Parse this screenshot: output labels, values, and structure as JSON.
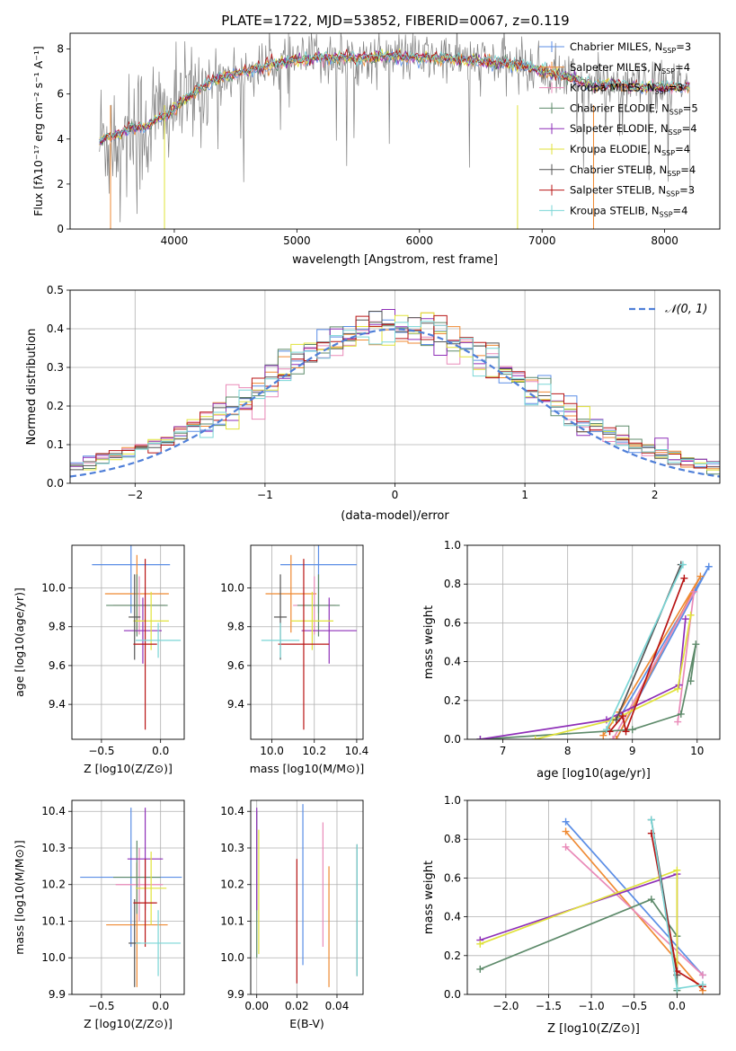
{
  "title": "PLATE=1722, MJD=53852, FIBERID=0067, z=0.119",
  "colors": {
    "Chabrier MILES": "#5b8ee6",
    "Salpeter MILES": "#ef8a33",
    "Kroupa MILES": "#e98ab8",
    "Chabrier ELODIE": "#5d8a6a",
    "Salpeter ELODIE": "#8e2fb8",
    "Kroupa ELODIE": "#e0e23a",
    "Chabrier STELIB": "#555555",
    "Salpeter STELIB": "#b81414",
    "Kroupa STELIB": "#7ad6d6"
  },
  "chart_data": [
    {
      "id": "spectrum",
      "type": "line",
      "xlabel": "wavelength [Angstrom, rest frame]",
      "ylabel": "Flux [f_λ 10^-17 erg cm^-2 s^-1 A^-1]",
      "xlim": [
        3150,
        8450
      ],
      "ylim": [
        0,
        8.7
      ],
      "xticks": [
        4000,
        5000,
        6000,
        7000,
        8000
      ],
      "yticks": [
        0,
        2,
        4,
        6,
        8
      ],
      "grid": false,
      "legend_position": "right",
      "legend": [
        {
          "label": "Chabrier MILES, N",
          "sub": "SSP",
          "tail": "=3",
          "model": "Chabrier MILES"
        },
        {
          "label": "Salpeter MILES, N",
          "sub": "SSP",
          "tail": "=4",
          "model": "Salpeter MILES"
        },
        {
          "label": "Kroupa MILES, N",
          "sub": "SSP",
          "tail": "=3",
          "model": "Kroupa MILES"
        },
        {
          "label": "Chabrier ELODIE, N",
          "sub": "SSP",
          "tail": "=5",
          "model": "Chabrier ELODIE"
        },
        {
          "label": "Salpeter ELODIE, N",
          "sub": "SSP",
          "tail": "=4",
          "model": "Salpeter ELODIE"
        },
        {
          "label": "Kroupa ELODIE, N",
          "sub": "SSP",
          "tail": "=4",
          "model": "Kroupa ELODIE"
        },
        {
          "label": "Chabrier STELIB, N",
          "sub": "SSP",
          "tail": "=4",
          "model": "Chabrier STELIB"
        },
        {
          "label": "Salpeter STELIB, N",
          "sub": "SSP",
          "tail": "=3",
          "model": "Salpeter STELIB"
        },
        {
          "label": "Kroupa STELIB, N",
          "sub": "SSP",
          "tail": "=4",
          "model": "Kroupa STELIB"
        }
      ],
      "model_curve": {
        "x": [
          3380,
          3450,
          3550,
          3650,
          3750,
          3850,
          3950,
          4050,
          4150,
          4250,
          4400,
          4600,
          4800,
          5000,
          5200,
          5400,
          5600,
          5800,
          6000,
          6200,
          6400,
          6600,
          6800,
          7000,
          7200,
          7400,
          7600,
          7800,
          8000,
          8200
        ],
        "y": [
          3.9,
          4.1,
          4.2,
          4.5,
          4.5,
          4.9,
          5.1,
          5.6,
          6.0,
          6.4,
          6.8,
          7.0,
          7.3,
          7.5,
          7.6,
          7.6,
          7.6,
          7.7,
          7.6,
          7.6,
          7.5,
          7.4,
          7.3,
          7.0,
          6.8,
          6.4,
          6.4,
          6.3,
          6.3,
          6.3
        ]
      },
      "data_x_range": [
        3390,
        8210
      ]
    },
    {
      "id": "residuals",
      "type": "line",
      "xlabel": "(data-model)/error",
      "ylabel": "Normed distribution",
      "xlim": [
        -2.5,
        2.5
      ],
      "ylim": [
        0,
        0.5
      ],
      "xticks": [
        -2,
        -1,
        0,
        1,
        2
      ],
      "yticks": [
        0.0,
        0.1,
        0.2,
        0.3,
        0.4,
        0.5
      ],
      "grid": true,
      "legend_label": "N(0,1)",
      "normal_color": "#4f7fd8"
    },
    {
      "id": "age-vs-Z",
      "type": "scatter",
      "xlabel": "Z [log10(Z/Z⊙)]",
      "ylabel": "age [log10(age/yr)]",
      "xlim": [
        -0.75,
        0.2
      ],
      "ylim": [
        9.22,
        10.22
      ],
      "xticks": [
        -0.5,
        0.0
      ],
      "yticks": [
        9.4,
        9.6,
        9.8,
        10.0
      ],
      "grid": true,
      "points": [
        {
          "model": "Chabrier MILES",
          "x": -0.25,
          "xerr": 0.33,
          "y": 10.12,
          "yerr": 0.25
        },
        {
          "model": "Salpeter MILES",
          "x": -0.2,
          "xerr": 0.27,
          "y": 9.97,
          "yerr": 0.2
        },
        {
          "model": "Kroupa MILES",
          "x": -0.18,
          "xerr": 0.22,
          "y": 9.91,
          "yerr": 0.15
        },
        {
          "model": "Chabrier ELODIE",
          "x": -0.2,
          "xerr": 0.26,
          "y": 9.91,
          "yerr": 0.16
        },
        {
          "model": "Salpeter ELODIE",
          "x": -0.15,
          "xerr": 0.16,
          "y": 9.78,
          "yerr": 0.17
        },
        {
          "model": "Kroupa ELODIE",
          "x": -0.08,
          "xerr": 0.15,
          "y": 9.83,
          "yerr": 0.15
        },
        {
          "model": "Chabrier STELIB",
          "x": -0.22,
          "xerr": 0.05,
          "y": 9.85,
          "yerr": 0.22
        },
        {
          "model": "Salpeter STELIB",
          "x": -0.13,
          "xerr": 0.1,
          "y": 9.71,
          "yerr": 0.44
        },
        {
          "model": "Kroupa STELIB",
          "x": -0.02,
          "xerr": 0.19,
          "y": 9.73,
          "yerr": 0.09
        }
      ]
    },
    {
      "id": "age-vs-mass",
      "type": "scatter",
      "xlabel": "mass [log10(M/M⊙)]",
      "ylabel": "",
      "xlim": [
        9.9,
        10.43
      ],
      "ylim": [
        9.22,
        10.22
      ],
      "xticks": [
        10.0,
        10.2,
        10.4
      ],
      "yticks": [
        9.4,
        9.6,
        9.8,
        10.0
      ],
      "grid": true,
      "points": [
        {
          "model": "Chabrier MILES",
          "x": 10.22,
          "xerr": 0.18,
          "y": 10.12,
          "yerr": 0.25
        },
        {
          "model": "Salpeter MILES",
          "x": 10.09,
          "xerr": 0.12,
          "y": 9.97,
          "yerr": 0.2
        },
        {
          "model": "Kroupa MILES",
          "x": 10.2,
          "xerr": 0.1,
          "y": 9.91,
          "yerr": 0.15
        },
        {
          "model": "Chabrier ELODIE",
          "x": 10.22,
          "xerr": 0.1,
          "y": 9.91,
          "yerr": 0.16
        },
        {
          "model": "Salpeter ELODIE",
          "x": 10.27,
          "xerr": 0.13,
          "y": 9.78,
          "yerr": 0.17
        },
        {
          "model": "Kroupa ELODIE",
          "x": 10.19,
          "xerr": 0.1,
          "y": 9.83,
          "yerr": 0.15
        },
        {
          "model": "Chabrier STELIB",
          "x": 10.04,
          "xerr": 0.03,
          "y": 9.85,
          "yerr": 0.22
        },
        {
          "model": "Salpeter STELIB",
          "x": 10.15,
          "xerr": 0.12,
          "y": 9.71,
          "yerr": 0.44
        },
        {
          "model": "Kroupa STELIB",
          "x": 10.04,
          "xerr": 0.09,
          "y": 9.73,
          "yerr": 0.09
        }
      ]
    },
    {
      "id": "weight-vs-age",
      "type": "line",
      "xlabel": "age [log10(age/yr)]",
      "ylabel": "mass weight",
      "xlim": [
        6.45,
        10.35
      ],
      "ylim": [
        0,
        1.0
      ],
      "xticks": [
        7,
        8,
        9,
        10
      ],
      "yticks": [
        0.0,
        0.2,
        0.4,
        0.6,
        0.8,
        1.0
      ],
      "grid": true,
      "series": [
        {
          "model": "Chabrier MILES",
          "x": [
            8.75,
            10.18,
            8.8
          ],
          "y": [
            0.0,
            0.89,
            0.11
          ]
        },
        {
          "model": "Salpeter MILES",
          "x": [
            8.75,
            10.05,
            8.8,
            8.55
          ],
          "y": [
            0.0,
            0.84,
            0.14,
            0.02
          ]
        },
        {
          "model": "Kroupa MILES",
          "x": [
            8.7,
            9.95,
            9.7
          ],
          "y": [
            0.0,
            0.76,
            0.09
          ]
        },
        {
          "model": "Chabrier ELODIE",
          "x": [
            6.65,
            9.0,
            9.75,
            9.98,
            9.9
          ],
          "y": [
            0.0,
            0.05,
            0.13,
            0.49,
            0.3
          ]
        },
        {
          "model": "Salpeter ELODIE",
          "x": [
            6.65,
            8.6,
            9.72,
            9.82
          ],
          "y": [
            0.0,
            0.1,
            0.28,
            0.62
          ]
        },
        {
          "model": "Kroupa ELODIE",
          "x": [
            7.5,
            8.7,
            9.7,
            9.9
          ],
          "y": [
            0.0,
            0.1,
            0.26,
            0.64
          ]
        },
        {
          "model": "Chabrier STELIB",
          "x": [
            8.75,
            9.75
          ],
          "y": [
            0.1,
            0.9
          ]
        },
        {
          "model": "Salpeter STELIB",
          "x": [
            8.65,
            8.85,
            8.9,
            9.8
          ],
          "y": [
            0.04,
            0.12,
            0.04,
            0.83
          ]
        },
        {
          "model": "Kroupa STELIB",
          "x": [
            8.6,
            9.78
          ],
          "y": [
            0.05,
            0.9
          ]
        }
      ]
    },
    {
      "id": "mass-vs-Z",
      "type": "scatter",
      "xlabel": "Z [log10(Z/Z⊙)]",
      "ylabel": "mass [log10(M/M⊙)]",
      "xlim": [
        -0.75,
        0.2
      ],
      "ylim": [
        9.9,
        10.43
      ],
      "xticks": [
        -0.5,
        0.0
      ],
      "yticks": [
        9.9,
        10.0,
        10.1,
        10.2,
        10.3,
        10.4
      ],
      "grid": true,
      "points": [
        {
          "model": "Chabrier MILES",
          "x": -0.25,
          "xerr": 0.43,
          "y": 10.22,
          "yerr": 0.19
        },
        {
          "model": "Salpeter MILES",
          "x": -0.2,
          "xerr": 0.26,
          "y": 10.09,
          "yerr": 0.17
        },
        {
          "model": "Kroupa MILES",
          "x": -0.18,
          "xerr": 0.2,
          "y": 10.2,
          "yerr": 0.1
        },
        {
          "model": "Chabrier ELODIE",
          "x": -0.2,
          "xerr": 0.2,
          "y": 10.22,
          "yerr": 0.1
        },
        {
          "model": "Salpeter ELODIE",
          "x": -0.13,
          "xerr": 0.15,
          "y": 10.27,
          "yerr": 0.14
        },
        {
          "model": "Kroupa ELODIE",
          "x": -0.08,
          "xerr": 0.13,
          "y": 10.19,
          "yerr": 0.1
        },
        {
          "model": "Chabrier STELIB",
          "x": -0.22,
          "xerr": 0.05,
          "y": 10.04,
          "yerr": 0.12
        },
        {
          "model": "Salpeter STELIB",
          "x": -0.13,
          "xerr": 0.1,
          "y": 10.15,
          "yerr": 0.12
        },
        {
          "model": "Kroupa STELIB",
          "x": -0.02,
          "xerr": 0.19,
          "y": 10.04,
          "yerr": 0.09
        }
      ]
    },
    {
      "id": "mass-vs-ebv",
      "type": "scatter",
      "xlabel": "E(B-V)",
      "ylabel": "",
      "xlim": [
        -0.003,
        0.053
      ],
      "ylim": [
        9.9,
        10.43
      ],
      "xticks": [
        0.0,
        0.02,
        0.04
      ],
      "yticks": [
        9.9,
        10.0,
        10.1,
        10.2,
        10.3,
        10.4
      ],
      "grid": true,
      "points": [
        {
          "model": "Chabrier MILES",
          "x": 0.023,
          "xerr": 0,
          "y": 10.2,
          "yerr": 0.22
        },
        {
          "model": "Salpeter MILES",
          "x": 0.036,
          "xerr": 0,
          "y": 10.085,
          "yerr": 0.165
        },
        {
          "model": "Kroupa MILES",
          "x": 0.033,
          "xerr": 0,
          "y": 10.2,
          "yerr": 0.17
        },
        {
          "model": "Chabrier ELODIE",
          "x": 0.0,
          "xerr": 0,
          "y": 10.2,
          "yerr": 0.2
        },
        {
          "model": "Salpeter ELODIE",
          "x": 0.0,
          "xerr": 0,
          "y": 10.27,
          "yerr": 0.14
        },
        {
          "model": "Kroupa ELODIE",
          "x": 0.001,
          "xerr": 0,
          "y": 10.18,
          "yerr": 0.17
        },
        {
          "model": "Chabrier STELIB",
          "x": 0.05,
          "xerr": 0,
          "y": 10.13,
          "yerr": 0.18
        },
        {
          "model": "Salpeter STELIB",
          "x": 0.02,
          "xerr": 0,
          "y": 10.1,
          "yerr": 0.17
        },
        {
          "model": "Kroupa STELIB",
          "x": 0.05,
          "xerr": 0,
          "y": 10.13,
          "yerr": 0.18
        }
      ]
    },
    {
      "id": "weight-vs-Z",
      "type": "line",
      "xlabel": "Z [log10(Z/Z⊙)]",
      "ylabel": "mass weight",
      "xlim": [
        -2.45,
        0.5
      ],
      "ylim": [
        0,
        1.0
      ],
      "xticks": [
        -2.0,
        -1.5,
        -1.0,
        -0.5,
        0.0
      ],
      "yticks": [
        0.0,
        0.2,
        0.4,
        0.6,
        0.8,
        1.0
      ],
      "grid": true,
      "series": [
        {
          "model": "Chabrier MILES",
          "x": [
            -1.3,
            0.3
          ],
          "y": [
            0.89,
            0.1
          ]
        },
        {
          "model": "Salpeter MILES",
          "x": [
            -1.3,
            0.3
          ],
          "y": [
            0.84,
            0.02
          ]
        },
        {
          "model": "Kroupa MILES",
          "x": [
            -1.3,
            0.3
          ],
          "y": [
            0.76,
            0.1
          ]
        },
        {
          "model": "Chabrier ELODIE",
          "x": [
            -2.3,
            -0.3,
            0.0,
            0.0
          ],
          "y": [
            0.13,
            0.49,
            0.3,
            0.02
          ]
        },
        {
          "model": "Salpeter ELODIE",
          "x": [
            -2.3,
            0.0,
            0.0
          ],
          "y": [
            0.28,
            0.62,
            0.1
          ]
        },
        {
          "model": "Kroupa ELODIE",
          "x": [
            -2.3,
            0.0,
            0.0
          ],
          "y": [
            0.26,
            0.64,
            0.1
          ]
        },
        {
          "model": "Chabrier STELIB",
          "x": [
            -0.3,
            0.0
          ],
          "y": [
            0.9,
            0.1
          ]
        },
        {
          "model": "Salpeter STELIB",
          "x": [
            -0.3,
            0.0,
            0.3
          ],
          "y": [
            0.83,
            0.12,
            0.04
          ]
        },
        {
          "model": "Kroupa STELIB",
          "x": [
            -0.3,
            0.0,
            0.3
          ],
          "y": [
            0.9,
            0.03,
            0.05
          ]
        }
      ]
    }
  ]
}
